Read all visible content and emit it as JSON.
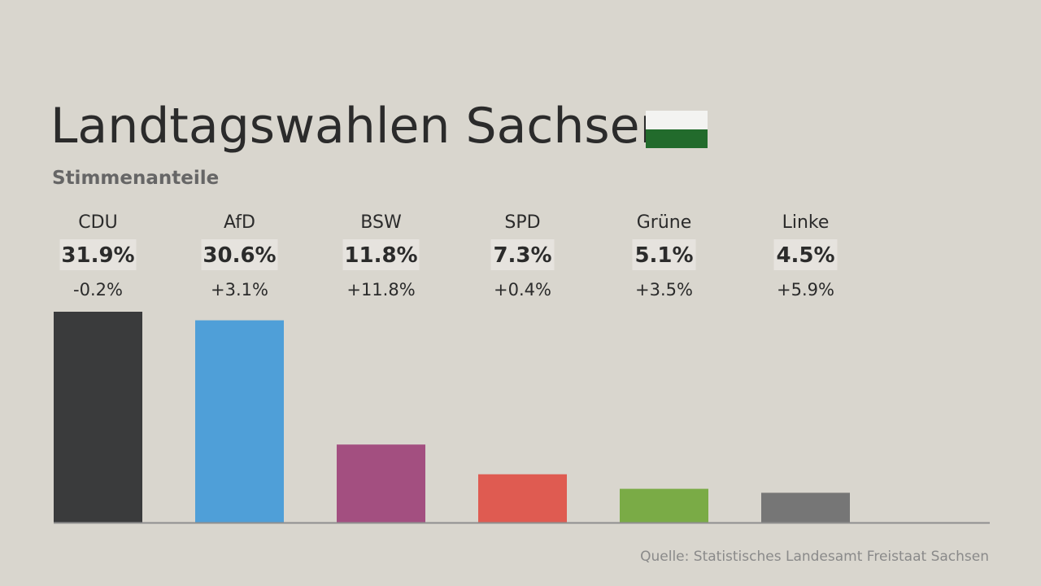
{
  "header": {
    "title": "Landtagswahlen Sachsen",
    "subtitle": "Stimmenanteile",
    "flag_colors": [
      "#f3f3f1",
      "#226b2c"
    ]
  },
  "source": "Quelle: Statistisches Landesamt Freistaat Sachsen",
  "chart_data": {
    "type": "bar",
    "title": "Landtagswahlen Sachsen",
    "subtitle": "Stimmenanteile",
    "categories": [
      "CDU",
      "AfD",
      "BSW",
      "SPD",
      "Grüne",
      "Linke"
    ],
    "values": [
      31.9,
      30.6,
      11.8,
      7.3,
      5.1,
      4.5
    ],
    "value_labels": [
      "31.9%",
      "30.6%",
      "11.8%",
      "7.3%",
      "5.1%",
      "4.5%"
    ],
    "change_labels": [
      "-0.2%",
      "+3.1%",
      "+11.8%",
      "+0.4%",
      "+3.5%",
      "+5.9%"
    ],
    "colors": [
      "#3a3b3c",
      "#4f9fd8",
      "#a34f80",
      "#df5b51",
      "#7aab46",
      "#767676"
    ],
    "label_box_color": "#e6e3de",
    "baseline_color": "#8f8f8f",
    "ylim": [
      0,
      31.9
    ],
    "grid": false,
    "legend": "none"
  }
}
